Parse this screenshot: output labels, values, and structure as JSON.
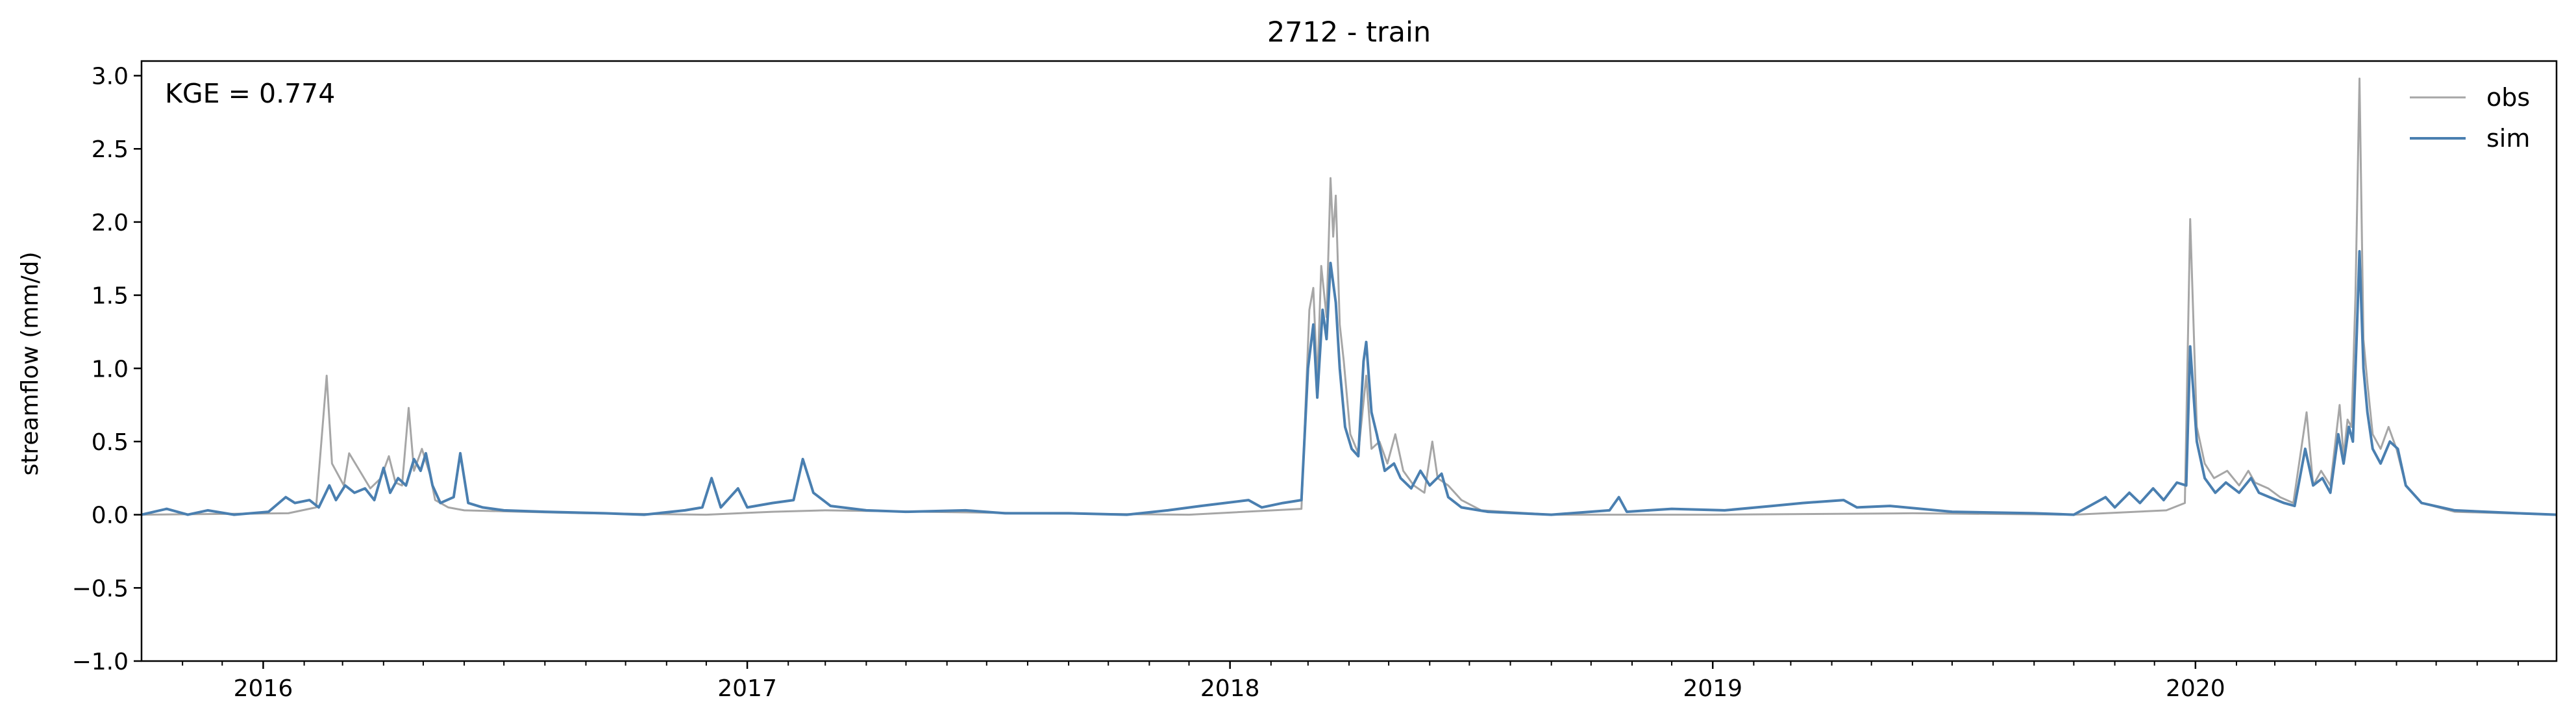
{
  "chart_data": {
    "type": "line",
    "title": "2712 - train",
    "ylabel": "streamflow (mm/d)",
    "xlabel": "",
    "xlim": [
      "2015-10-01",
      "2020-09-30"
    ],
    "ylim": [
      -1.0,
      3.1
    ],
    "yticks": [
      -1.0,
      -0.5,
      0.0,
      0.5,
      1.0,
      1.5,
      2.0,
      2.5,
      3.0
    ],
    "ytick_labels": [
      "−1.0",
      "−0.5",
      "0.0",
      "0.5",
      "1.0",
      "1.5",
      "2.0",
      "2.5",
      "3.0"
    ],
    "xticks": [
      "2016-01-01",
      "2017-01-01",
      "2018-01-01",
      "2019-01-01",
      "2020-01-01"
    ],
    "xtick_labels": [
      "2016",
      "2017",
      "2018",
      "2019",
      "2020"
    ],
    "minor_xticks": "monthly",
    "grid": false,
    "legend": "top-right",
    "annotation": "KGE = 0.774",
    "series": [
      {
        "name": "obs",
        "color": "#a6a6a6",
        "points": [
          [
            "2015-10-01",
            0.0
          ],
          [
            "2016-01-20",
            0.01
          ],
          [
            "2016-02-10",
            0.05
          ],
          [
            "2016-02-18",
            0.95
          ],
          [
            "2016-02-22",
            0.35
          ],
          [
            "2016-03-02",
            0.2
          ],
          [
            "2016-03-06",
            0.42
          ],
          [
            "2016-03-14",
            0.3
          ],
          [
            "2016-03-22",
            0.18
          ],
          [
            "2016-03-30",
            0.25
          ],
          [
            "2016-04-05",
            0.4
          ],
          [
            "2016-04-10",
            0.22
          ],
          [
            "2016-04-15",
            0.2
          ],
          [
            "2016-04-20",
            0.73
          ],
          [
            "2016-04-24",
            0.3
          ],
          [
            "2016-04-30",
            0.45
          ],
          [
            "2016-05-06",
            0.28
          ],
          [
            "2016-05-10",
            0.1
          ],
          [
            "2016-05-20",
            0.05
          ],
          [
            "2016-06-01",
            0.03
          ],
          [
            "2016-07-15",
            0.02
          ],
          [
            "2016-09-01",
            0.01
          ],
          [
            "2016-12-01",
            0.0
          ],
          [
            "2017-01-20",
            0.02
          ],
          [
            "2017-03-01",
            0.03
          ],
          [
            "2017-05-15",
            0.02
          ],
          [
            "2017-08-01",
            0.01
          ],
          [
            "2017-12-01",
            0.0
          ],
          [
            "2018-02-24",
            0.04
          ],
          [
            "2018-03-02",
            1.4
          ],
          [
            "2018-03-05",
            1.55
          ],
          [
            "2018-03-08",
            0.9
          ],
          [
            "2018-03-11",
            1.7
          ],
          [
            "2018-03-15",
            1.35
          ],
          [
            "2018-03-18",
            2.3
          ],
          [
            "2018-03-20",
            1.9
          ],
          [
            "2018-03-22",
            2.18
          ],
          [
            "2018-03-25",
            1.3
          ],
          [
            "2018-03-28",
            1.05
          ],
          [
            "2018-04-02",
            0.55
          ],
          [
            "2018-04-08",
            0.42
          ],
          [
            "2018-04-14",
            0.95
          ],
          [
            "2018-04-18",
            0.45
          ],
          [
            "2018-04-24",
            0.5
          ],
          [
            "2018-04-30",
            0.35
          ],
          [
            "2018-05-06",
            0.55
          ],
          [
            "2018-05-12",
            0.3
          ],
          [
            "2018-05-20",
            0.2
          ],
          [
            "2018-05-28",
            0.15
          ],
          [
            "2018-06-03",
            0.5
          ],
          [
            "2018-06-07",
            0.25
          ],
          [
            "2018-06-15",
            0.2
          ],
          [
            "2018-06-25",
            0.1
          ],
          [
            "2018-07-10",
            0.03
          ],
          [
            "2018-09-01",
            0.0
          ],
          [
            "2019-01-01",
            0.0
          ],
          [
            "2019-06-01",
            0.01
          ],
          [
            "2019-10-01",
            0.0
          ],
          [
            "2019-12-10",
            0.03
          ],
          [
            "2019-12-24",
            0.08
          ],
          [
            "2019-12-28",
            2.02
          ],
          [
            "2020-01-02",
            0.6
          ],
          [
            "2020-01-08",
            0.35
          ],
          [
            "2020-01-15",
            0.25
          ],
          [
            "2020-01-25",
            0.3
          ],
          [
            "2020-02-03",
            0.2
          ],
          [
            "2020-02-10",
            0.3
          ],
          [
            "2020-02-15",
            0.22
          ],
          [
            "2020-02-25",
            0.18
          ],
          [
            "2020-03-05",
            0.12
          ],
          [
            "2020-03-15",
            0.08
          ],
          [
            "2020-03-25",
            0.7
          ],
          [
            "2020-03-30",
            0.2
          ],
          [
            "2020-04-05",
            0.3
          ],
          [
            "2020-04-12",
            0.2
          ],
          [
            "2020-04-19",
            0.75
          ],
          [
            "2020-04-22",
            0.4
          ],
          [
            "2020-04-25",
            0.65
          ],
          [
            "2020-04-28",
            0.6
          ],
          [
            "2020-05-01",
            1.5
          ],
          [
            "2020-05-04",
            2.98
          ],
          [
            "2020-05-07",
            1.2
          ],
          [
            "2020-05-10",
            0.9
          ],
          [
            "2020-05-14",
            0.55
          ],
          [
            "2020-05-20",
            0.45
          ],
          [
            "2020-05-26",
            0.6
          ],
          [
            "2020-06-01",
            0.45
          ],
          [
            "2020-06-08",
            0.2
          ],
          [
            "2020-06-20",
            0.08
          ],
          [
            "2020-07-15",
            0.02
          ],
          [
            "2020-09-30",
            0.0
          ]
        ]
      },
      {
        "name": "sim",
        "color": "#4a7fb0",
        "points": [
          [
            "2015-10-01",
            0.0
          ],
          [
            "2015-10-20",
            0.04
          ],
          [
            "2015-11-05",
            0.0
          ],
          [
            "2015-11-20",
            0.03
          ],
          [
            "2015-12-10",
            0.0
          ],
          [
            "2016-01-05",
            0.02
          ],
          [
            "2016-01-18",
            0.12
          ],
          [
            "2016-01-25",
            0.08
          ],
          [
            "2016-02-05",
            0.1
          ],
          [
            "2016-02-12",
            0.05
          ],
          [
            "2016-02-20",
            0.2
          ],
          [
            "2016-02-25",
            0.1
          ],
          [
            "2016-03-03",
            0.2
          ],
          [
            "2016-03-10",
            0.15
          ],
          [
            "2016-03-18",
            0.18
          ],
          [
            "2016-03-25",
            0.1
          ],
          [
            "2016-04-01",
            0.32
          ],
          [
            "2016-04-06",
            0.15
          ],
          [
            "2016-04-12",
            0.25
          ],
          [
            "2016-04-18",
            0.2
          ],
          [
            "2016-04-24",
            0.38
          ],
          [
            "2016-04-29",
            0.3
          ],
          [
            "2016-05-03",
            0.42
          ],
          [
            "2016-05-08",
            0.2
          ],
          [
            "2016-05-14",
            0.08
          ],
          [
            "2016-05-24",
            0.12
          ],
          [
            "2016-05-29",
            0.42
          ],
          [
            "2016-06-04",
            0.08
          ],
          [
            "2016-06-15",
            0.05
          ],
          [
            "2016-07-01",
            0.03
          ],
          [
            "2016-08-01",
            0.02
          ],
          [
            "2016-09-15",
            0.01
          ],
          [
            "2016-10-15",
            0.0
          ],
          [
            "2016-11-15",
            0.03
          ],
          [
            "2016-11-28",
            0.05
          ],
          [
            "2016-12-05",
            0.25
          ],
          [
            "2016-12-12",
            0.05
          ],
          [
            "2016-12-25",
            0.18
          ],
          [
            "2017-01-01",
            0.05
          ],
          [
            "2017-01-20",
            0.08
          ],
          [
            "2017-02-05",
            0.1
          ],
          [
            "2017-02-12",
            0.38
          ],
          [
            "2017-02-20",
            0.15
          ],
          [
            "2017-03-05",
            0.06
          ],
          [
            "2017-04-01",
            0.03
          ],
          [
            "2017-05-01",
            0.02
          ],
          [
            "2017-06-15",
            0.03
          ],
          [
            "2017-07-15",
            0.01
          ],
          [
            "2017-09-01",
            0.01
          ],
          [
            "2017-10-15",
            0.0
          ],
          [
            "2017-11-15",
            0.03
          ],
          [
            "2017-12-10",
            0.06
          ],
          [
            "2018-01-15",
            0.1
          ],
          [
            "2018-01-25",
            0.05
          ],
          [
            "2018-02-10",
            0.08
          ],
          [
            "2018-02-24",
            0.1
          ],
          [
            "2018-03-01",
            1.0
          ],
          [
            "2018-03-05",
            1.3
          ],
          [
            "2018-03-08",
            0.8
          ],
          [
            "2018-03-12",
            1.4
          ],
          [
            "2018-03-15",
            1.2
          ],
          [
            "2018-03-18",
            1.72
          ],
          [
            "2018-03-22",
            1.45
          ],
          [
            "2018-03-25",
            1.0
          ],
          [
            "2018-03-29",
            0.6
          ],
          [
            "2018-04-03",
            0.45
          ],
          [
            "2018-04-08",
            0.4
          ],
          [
            "2018-04-12",
            1.05
          ],
          [
            "2018-04-14",
            1.18
          ],
          [
            "2018-04-18",
            0.7
          ],
          [
            "2018-04-22",
            0.55
          ],
          [
            "2018-04-28",
            0.3
          ],
          [
            "2018-05-05",
            0.35
          ],
          [
            "2018-05-10",
            0.25
          ],
          [
            "2018-05-18",
            0.18
          ],
          [
            "2018-05-25",
            0.3
          ],
          [
            "2018-06-01",
            0.2
          ],
          [
            "2018-06-10",
            0.28
          ],
          [
            "2018-06-15",
            0.12
          ],
          [
            "2018-06-25",
            0.05
          ],
          [
            "2018-07-15",
            0.02
          ],
          [
            "2018-09-01",
            0.0
          ],
          [
            "2018-10-15",
            0.03
          ],
          [
            "2018-10-22",
            0.12
          ],
          [
            "2018-10-28",
            0.02
          ],
          [
            "2018-12-01",
            0.04
          ],
          [
            "2019-01-10",
            0.03
          ],
          [
            "2019-02-15",
            0.06
          ],
          [
            "2019-03-10",
            0.08
          ],
          [
            "2019-04-10",
            0.1
          ],
          [
            "2019-04-20",
            0.05
          ],
          [
            "2019-05-15",
            0.06
          ],
          [
            "2019-07-01",
            0.02
          ],
          [
            "2019-09-01",
            0.01
          ],
          [
            "2019-10-01",
            0.0
          ],
          [
            "2019-10-25",
            0.12
          ],
          [
            "2019-11-01",
            0.05
          ],
          [
            "2019-11-12",
            0.15
          ],
          [
            "2019-11-20",
            0.08
          ],
          [
            "2019-11-30",
            0.18
          ],
          [
            "2019-12-08",
            0.1
          ],
          [
            "2019-12-18",
            0.22
          ],
          [
            "2019-12-25",
            0.2
          ],
          [
            "2019-12-28",
            1.15
          ],
          [
            "2020-01-02",
            0.5
          ],
          [
            "2020-01-08",
            0.25
          ],
          [
            "2020-01-16",
            0.15
          ],
          [
            "2020-01-24",
            0.22
          ],
          [
            "2020-02-03",
            0.15
          ],
          [
            "2020-02-12",
            0.25
          ],
          [
            "2020-02-18",
            0.15
          ],
          [
            "2020-02-26",
            0.12
          ],
          [
            "2020-03-08",
            0.08
          ],
          [
            "2020-03-16",
            0.06
          ],
          [
            "2020-03-24",
            0.45
          ],
          [
            "2020-03-30",
            0.2
          ],
          [
            "2020-04-06",
            0.25
          ],
          [
            "2020-04-12",
            0.15
          ],
          [
            "2020-04-18",
            0.55
          ],
          [
            "2020-04-22",
            0.35
          ],
          [
            "2020-04-26",
            0.6
          ],
          [
            "2020-04-29",
            0.5
          ],
          [
            "2020-05-02",
            1.25
          ],
          [
            "2020-05-04",
            1.8
          ],
          [
            "2020-05-07",
            1.0
          ],
          [
            "2020-05-10",
            0.7
          ],
          [
            "2020-05-14",
            0.45
          ],
          [
            "2020-05-20",
            0.35
          ],
          [
            "2020-05-27",
            0.5
          ],
          [
            "2020-06-02",
            0.45
          ],
          [
            "2020-06-08",
            0.2
          ],
          [
            "2020-06-20",
            0.08
          ],
          [
            "2020-07-15",
            0.03
          ],
          [
            "2020-09-01",
            0.01
          ],
          [
            "2020-09-30",
            0.0
          ]
        ]
      }
    ]
  }
}
